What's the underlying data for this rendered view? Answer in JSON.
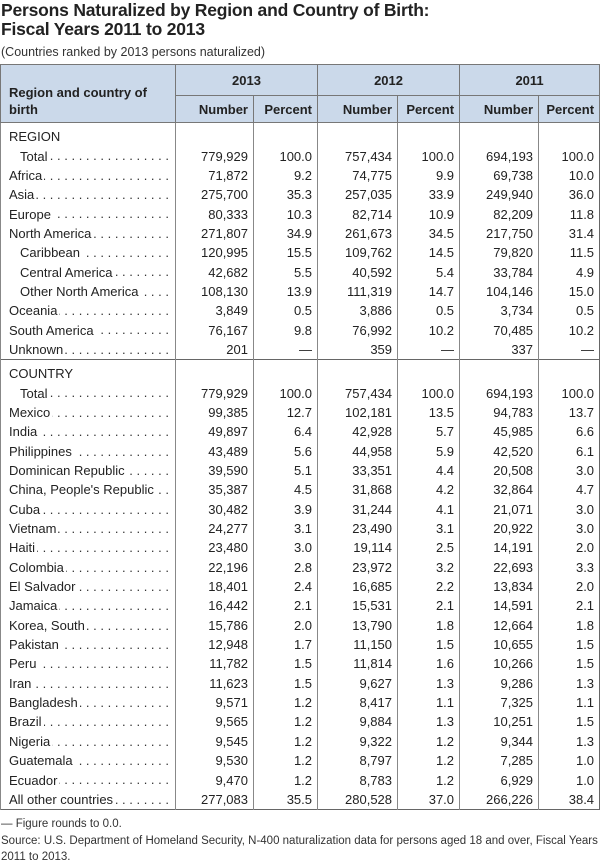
{
  "title_line1": "Persons Naturalized by Region and Country of Birth:",
  "title_line2": "Fiscal Years 2011 to 2013",
  "subtitle": "(Countries ranked by 2013 persons naturalized)",
  "header": {
    "label": "Region and country of birth",
    "years": [
      "2013",
      "2012",
      "2011"
    ],
    "number": "Number",
    "percent": "Percent"
  },
  "sections": [
    {
      "heading": "REGION",
      "rows": [
        {
          "label": "Total",
          "indent": true,
          "values": [
            "779,929",
            "100.0",
            "757,434",
            "100.0",
            "694,193",
            "100.0"
          ]
        },
        {
          "label": "Africa",
          "values": [
            "71,872",
            "9.2",
            "74,775",
            "9.9",
            "69,738",
            "10.0"
          ]
        },
        {
          "label": "Asia",
          "values": [
            "275,700",
            "35.3",
            "257,035",
            "33.9",
            "249,940",
            "36.0"
          ]
        },
        {
          "label": "Europe",
          "values": [
            "80,333",
            "10.3",
            "82,714",
            "10.9",
            "82,209",
            "11.8"
          ]
        },
        {
          "label": "North America",
          "values": [
            "271,807",
            "34.9",
            "261,673",
            "34.5",
            "217,750",
            "31.4"
          ]
        },
        {
          "label": "Caribbean",
          "indent": true,
          "values": [
            "120,995",
            "15.5",
            "109,762",
            "14.5",
            "79,820",
            "11.5"
          ]
        },
        {
          "label": "Central America",
          "indent": true,
          "values": [
            "42,682",
            "5.5",
            "40,592",
            "5.4",
            "33,784",
            "4.9"
          ]
        },
        {
          "label": "Other North America",
          "indent": true,
          "values": [
            "108,130",
            "13.9",
            "111,319",
            "14.7",
            "104,146",
            "15.0"
          ]
        },
        {
          "label": "Oceania",
          "values": [
            "3,849",
            "0.5",
            "3,886",
            "0.5",
            "3,734",
            "0.5"
          ]
        },
        {
          "label": "South America",
          "values": [
            "76,167",
            "9.8",
            "76,992",
            "10.2",
            "70,485",
            "10.2"
          ]
        },
        {
          "label": "Unknown",
          "values": [
            "201",
            "—",
            "359",
            "—",
            "337",
            "—"
          ]
        }
      ]
    },
    {
      "heading": "COUNTRY",
      "rows": [
        {
          "label": "Total",
          "indent": true,
          "values": [
            "779,929",
            "100.0",
            "757,434",
            "100.0",
            "694,193",
            "100.0"
          ]
        },
        {
          "label": "Mexico",
          "values": [
            "99,385",
            "12.7",
            "102,181",
            "13.5",
            "94,783",
            "13.7"
          ]
        },
        {
          "label": "India",
          "values": [
            "49,897",
            "6.4",
            "42,928",
            "5.7",
            "45,985",
            "6.6"
          ]
        },
        {
          "label": "Philippines",
          "values": [
            "43,489",
            "5.6",
            "44,958",
            "5.9",
            "42,520",
            "6.1"
          ]
        },
        {
          "label": "Dominican Republic",
          "values": [
            "39,590",
            "5.1",
            "33,351",
            "4.4",
            "20,508",
            "3.0"
          ]
        },
        {
          "label": "China, People's Republic",
          "values": [
            "35,387",
            "4.5",
            "31,868",
            "4.2",
            "32,864",
            "4.7"
          ]
        },
        {
          "label": "Cuba",
          "values": [
            "30,482",
            "3.9",
            "31,244",
            "4.1",
            "21,071",
            "3.0"
          ]
        },
        {
          "label": "Vietnam",
          "values": [
            "24,277",
            "3.1",
            "23,490",
            "3.1",
            "20,922",
            "3.0"
          ]
        },
        {
          "label": "Haiti",
          "values": [
            "23,480",
            "3.0",
            "19,114",
            "2.5",
            "14,191",
            "2.0"
          ]
        },
        {
          "label": "Colombia",
          "values": [
            "22,196",
            "2.8",
            "23,972",
            "3.2",
            "22,693",
            "3.3"
          ]
        },
        {
          "label": "El Salvador",
          "values": [
            "18,401",
            "2.4",
            "16,685",
            "2.2",
            "13,834",
            "2.0"
          ]
        },
        {
          "label": "Jamaica",
          "values": [
            "16,442",
            "2.1",
            "15,531",
            "2.1",
            "14,591",
            "2.1"
          ]
        },
        {
          "label": "Korea, South",
          "values": [
            "15,786",
            "2.0",
            "13,790",
            "1.8",
            "12,664",
            "1.8"
          ]
        },
        {
          "label": "Pakistan",
          "values": [
            "12,948",
            "1.7",
            "11,150",
            "1.5",
            "10,655",
            "1.5"
          ]
        },
        {
          "label": "Peru",
          "values": [
            "11,782",
            "1.5",
            "11,814",
            "1.6",
            "10,266",
            "1.5"
          ]
        },
        {
          "label": "Iran",
          "values": [
            "11,623",
            "1.5",
            "9,627",
            "1.3",
            "9,286",
            "1.3"
          ]
        },
        {
          "label": "Bangladesh",
          "values": [
            "9,571",
            "1.2",
            "8,417",
            "1.1",
            "7,325",
            "1.1"
          ]
        },
        {
          "label": "Brazil",
          "values": [
            "9,565",
            "1.2",
            "9,884",
            "1.3",
            "10,251",
            "1.5"
          ]
        },
        {
          "label": "Nigeria",
          "values": [
            "9,545",
            "1.2",
            "9,322",
            "1.2",
            "9,344",
            "1.3"
          ]
        },
        {
          "label": "Guatemala",
          "values": [
            "9,530",
            "1.2",
            "8,797",
            "1.2",
            "7,285",
            "1.0"
          ]
        },
        {
          "label": "Ecuador",
          "values": [
            "9,470",
            "1.2",
            "8,783",
            "1.2",
            "6,929",
            "1.0"
          ]
        },
        {
          "label": "All other countries",
          "values": [
            "277,083",
            "35.5",
            "280,528",
            "37.0",
            "266,226",
            "38.4"
          ]
        }
      ]
    }
  ],
  "footnote": "— Figure rounds to 0.0.",
  "source": "Source: U.S. Department of Homeland Security, N-400 naturalization data for persons aged 18 and over, Fiscal Years 2011 to 2013.",
  "colors": {
    "header_bg": "#cbd9ea",
    "border": "#666666"
  }
}
